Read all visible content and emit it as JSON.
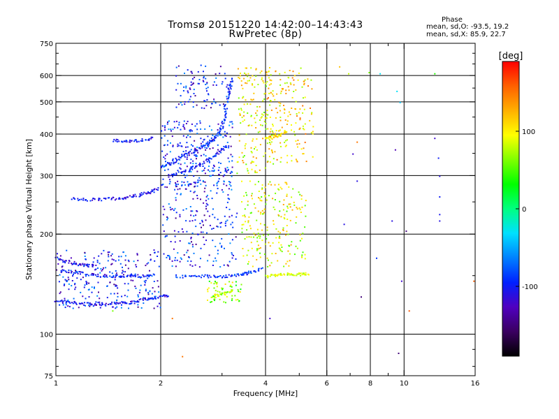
{
  "title": "Tromsø 20151220 14:42:00–14:43:43",
  "subtitle": "RwPretec (8p)",
  "phase_box": {
    "heading": "Phase",
    "line_o": "mean, sd,O: -93.5, 19.2",
    "line_x": "mean, sd,X:  85.9, 22.7"
  },
  "chart_data": {
    "type": "scatter",
    "xlabel": "Frequency [MHz]",
    "ylabel": "Stationary phase Virtual Height [km]",
    "x_scale": "log",
    "y_scale": "log",
    "xlim": [
      1,
      16
    ],
    "ylim": [
      75,
      750
    ],
    "x_ticks": [
      1,
      2,
      4,
      6,
      8,
      10,
      16
    ],
    "x_tick_labels": [
      "1",
      "2",
      "4",
      "6",
      "8",
      "10",
      "16"
    ],
    "x_minor_ticks": [
      3,
      5,
      7,
      9
    ],
    "y_ticks": [
      75,
      100,
      200,
      300,
      400,
      500,
      600,
      750
    ],
    "y_tick_labels": [
      "75",
      "100",
      "200",
      "300",
      "400",
      "500",
      "600",
      "750"
    ],
    "y_minor_ticks": [
      80,
      90,
      150,
      250,
      350,
      450,
      550,
      650,
      700
    ],
    "vertical_grid": [
      2,
      4,
      6,
      8,
      10
    ],
    "horizontal_grid": [
      100,
      200,
      300,
      400,
      500,
      600
    ],
    "grid": true,
    "colorbar": {
      "unit": "deg",
      "range": [
        -190,
        190
      ],
      "ticks": [
        100,
        0,
        -100
      ],
      "tick_labels": [
        "100",
        "0",
        "-100"
      ],
      "colormap": [
        "#000000",
        "#3a0060",
        "#5000c0",
        "#0020ff",
        "#0080ff",
        "#00e0ff",
        "#00ff80",
        "#00ff00",
        "#80ff00",
        "#ffff00",
        "#ffb000",
        "#ff6000",
        "#ff0000"
      ]
    },
    "series": [
      {
        "kind": "trace",
        "points": [
          [
            1.0,
            127
          ],
          [
            1.1,
            125
          ],
          [
            1.2,
            124
          ],
          [
            1.35,
            124
          ],
          [
            1.5,
            125
          ],
          [
            1.65,
            125
          ],
          [
            1.8,
            128
          ],
          [
            1.95,
            130
          ],
          [
            2.1,
            131
          ]
        ],
        "phase": -105
      },
      {
        "kind": "trace",
        "points": [
          [
            1.02,
            156
          ],
          [
            1.15,
            154
          ],
          [
            1.3,
            151
          ],
          [
            1.45,
            150
          ],
          [
            1.6,
            150
          ],
          [
            1.75,
            150
          ],
          [
            1.9,
            152
          ]
        ],
        "phase": -95
      },
      {
        "kind": "trace",
        "points": [
          [
            1.0,
            170
          ],
          [
            1.1,
            165
          ],
          [
            1.2,
            162
          ],
          [
            1.3,
            161
          ]
        ],
        "phase": -110
      },
      {
        "kind": "trace",
        "points": [
          [
            1.1,
            257
          ],
          [
            1.25,
            255
          ],
          [
            1.4,
            256
          ],
          [
            1.55,
            258
          ],
          [
            1.7,
            262
          ],
          [
            1.85,
            268
          ],
          [
            1.95,
            275
          ]
        ],
        "phase": -105
      },
      {
        "kind": "trace",
        "points": [
          [
            1.45,
            384
          ],
          [
            1.6,
            382
          ],
          [
            1.75,
            385
          ],
          [
            1.9,
            390
          ]
        ],
        "phase": -100
      },
      {
        "kind": "trace",
        "points": [
          [
            2.2,
            150
          ],
          [
            2.5,
            150
          ],
          [
            2.8,
            150
          ],
          [
            3.1,
            150
          ],
          [
            3.4,
            152
          ],
          [
            3.6,
            154
          ],
          [
            3.9,
            158
          ]
        ],
        "phase": -90
      },
      {
        "kind": "trace",
        "points": [
          [
            2.0,
            320
          ],
          [
            2.15,
            330
          ],
          [
            2.3,
            345
          ],
          [
            2.45,
            355
          ],
          [
            2.6,
            365
          ],
          [
            2.75,
            380
          ],
          [
            2.9,
            400
          ],
          [
            3.0,
            430
          ],
          [
            3.05,
            470
          ],
          [
            3.1,
            520
          ],
          [
            3.15,
            560
          ],
          [
            3.2,
            590
          ]
        ],
        "phase": -95
      },
      {
        "kind": "trace",
        "points": [
          [
            2.1,
            300
          ],
          [
            2.3,
            310
          ],
          [
            2.5,
            320
          ],
          [
            2.7,
            335
          ],
          [
            2.9,
            350
          ],
          [
            3.1,
            370
          ]
        ],
        "phase": -100
      },
      {
        "kind": "trace",
        "points": [
          [
            4.0,
            390
          ],
          [
            4.2,
            395
          ],
          [
            4.4,
            400
          ],
          [
            4.6,
            410
          ]
        ],
        "phase": 105
      },
      {
        "kind": "trace",
        "points": [
          [
            4.0,
            150
          ],
          [
            4.3,
            151
          ],
          [
            4.6,
            152
          ],
          [
            5.0,
            152
          ],
          [
            5.3,
            153
          ]
        ],
        "phase": 85
      },
      {
        "kind": "trace",
        "points": [
          [
            2.8,
            130
          ],
          [
            3.0,
            133
          ],
          [
            3.2,
            136
          ]
        ],
        "phase": 75
      }
    ]
  }
}
